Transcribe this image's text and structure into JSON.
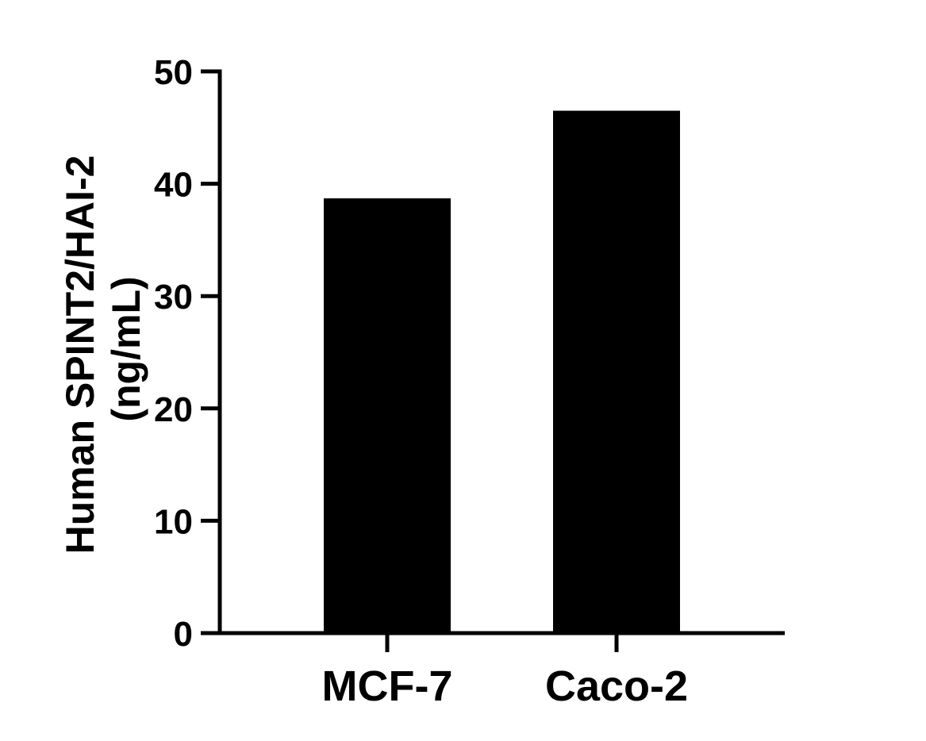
{
  "chart_data": {
    "type": "bar",
    "categories": [
      "MCF-7",
      "Caco-2"
    ],
    "values": [
      38.7,
      46.5
    ],
    "title": "",
    "xlabel": "",
    "ylabel_lines": [
      "Human SPINT2/HAI-2",
      "(ng/mL)"
    ],
    "ylim": [
      0,
      50
    ],
    "yticks": [
      0,
      10,
      20,
      30,
      40,
      50
    ],
    "grid": false,
    "bar_color": "#000000",
    "axis_color": "#000000"
  }
}
